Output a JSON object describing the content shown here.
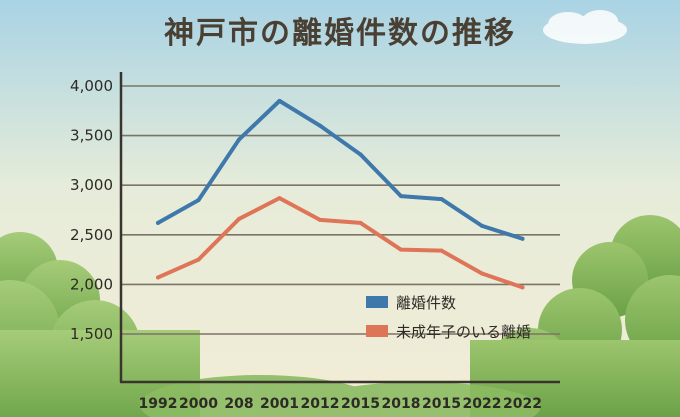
{
  "chart_data": {
    "type": "line",
    "title": "神戸市の離婚件数の推移",
    "categories": [
      "1992",
      "2000",
      "208",
      "2001",
      "2012",
      "2015",
      "2018",
      "2015",
      "2022",
      "2022"
    ],
    "series": [
      {
        "name": "離婚件数",
        "color": "#3f78aa",
        "values": [
          2620,
          2850,
          3460,
          3850,
          3600,
          3310,
          2890,
          2860,
          2590,
          2460
        ]
      },
      {
        "name": "未成年子のいる離婚",
        "color": "#df7558",
        "values": [
          2070,
          2250,
          2660,
          2870,
          2650,
          2620,
          2350,
          2340,
          2110,
          1970
        ]
      }
    ],
    "yticks": [
      "4,000",
      "3,500",
      "3,000",
      "2,500",
      "2,000",
      "1,500"
    ],
    "ytick_values": [
      4000,
      3500,
      3000,
      2500,
      2000,
      1500
    ],
    "ylim": [
      1000,
      4000
    ],
    "grid": true,
    "legend_position": "bottom-right"
  }
}
